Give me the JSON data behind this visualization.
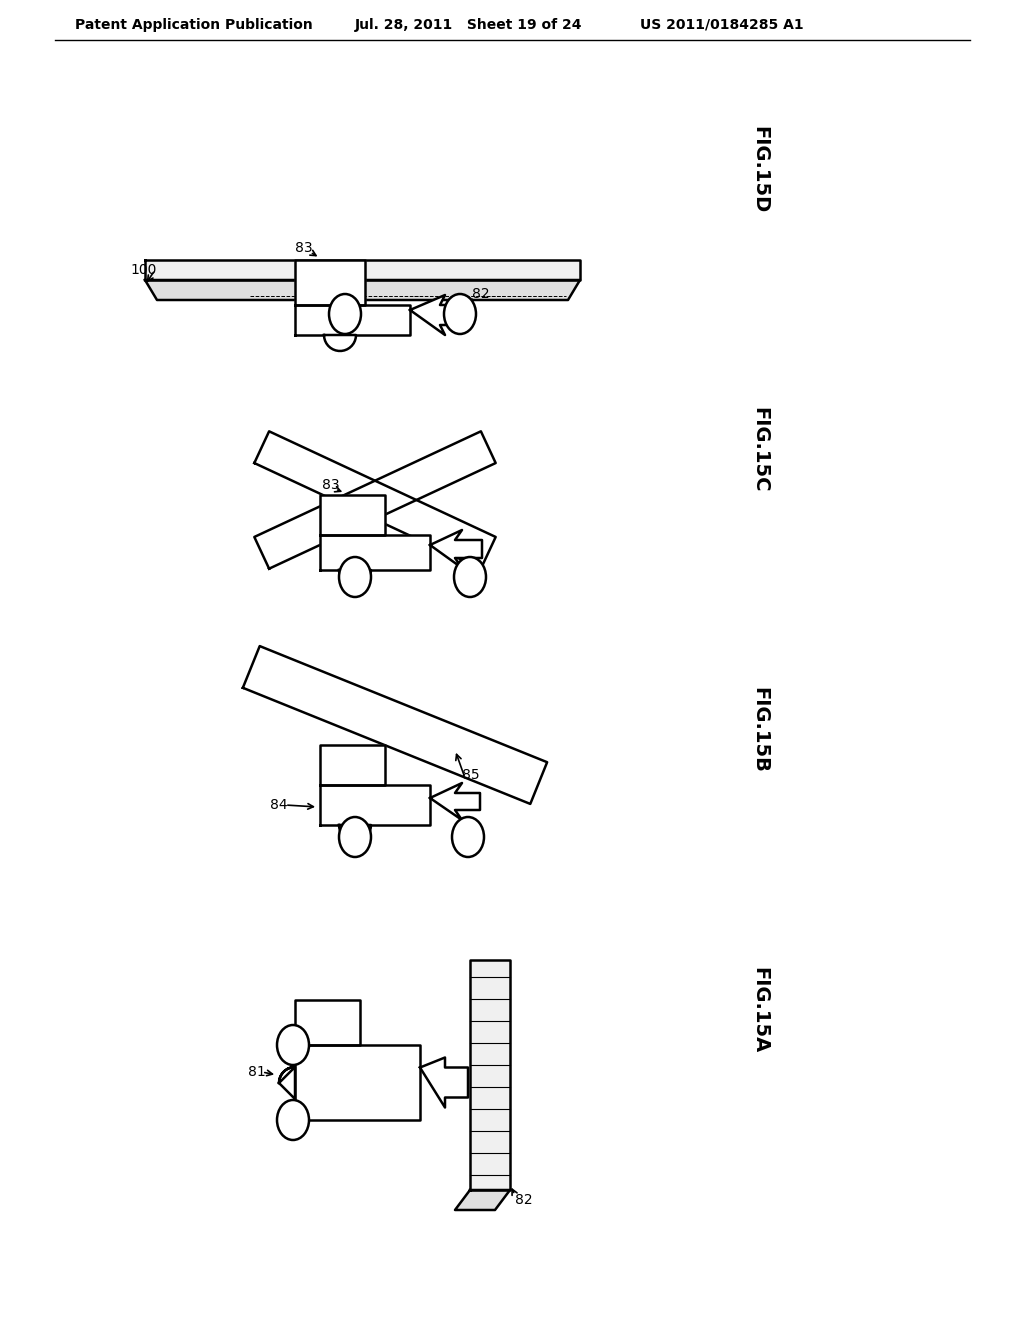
{
  "bg_color": "#ffffff",
  "line_color": "#000000",
  "header_left": "Patent Application Publication",
  "header_mid": "Jul. 28, 2011   Sheet 19 of 24",
  "header_right": "US 2011/0184285 A1",
  "lw": 1.8
}
